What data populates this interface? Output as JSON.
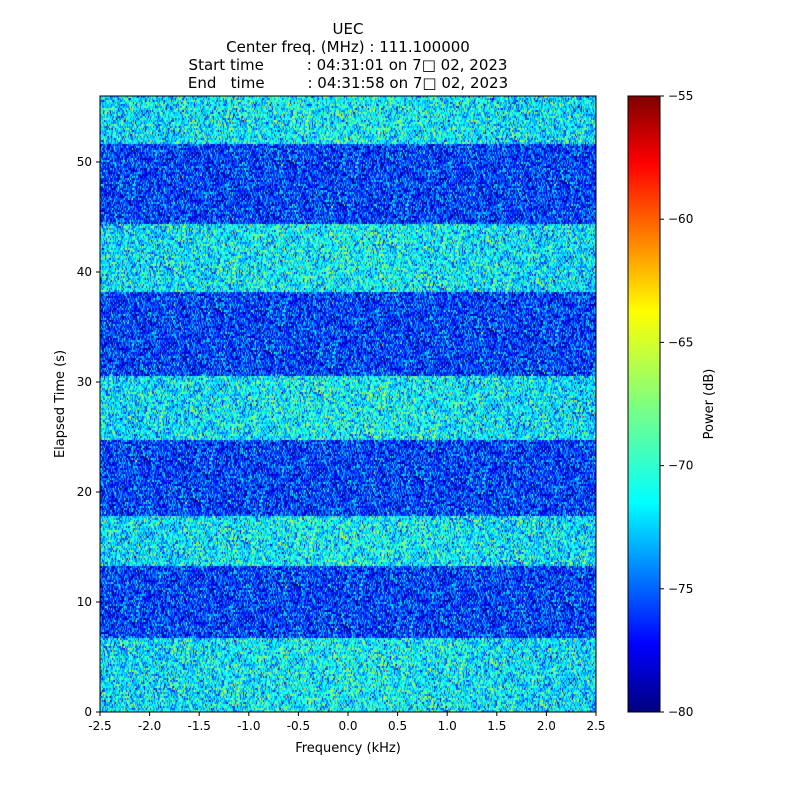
{
  "chart_data": {
    "type": "heatmap",
    "title_lines": [
      "UEC",
      "Center freq. (MHz) : 111.100000",
      "Start time         : 04:31:01 on 7□ 02, 2023",
      "End   time         : 04:31:58 on 7□ 02, 2023"
    ],
    "xlabel": "Frequency (kHz)",
    "ylabel": "Elapsed Time (s)",
    "colorbar_label": "Power (dB)",
    "colormap": "jet",
    "xlim": [
      -2.5,
      2.5
    ],
    "ylim": [
      0,
      56
    ],
    "clim": [
      -80,
      -55
    ],
    "x_ticks": [
      -2.5,
      -2.0,
      -1.5,
      -1.0,
      -0.5,
      0.0,
      0.5,
      1.0,
      1.5,
      2.0,
      2.5
    ],
    "x_tick_labels": [
      "-2.5",
      "-2.0",
      "-1.5",
      "-1.0",
      "-0.5",
      "0.0",
      "0.5",
      "1.0",
      "1.5",
      "2.0",
      "2.5"
    ],
    "y_ticks": [
      0,
      10,
      20,
      30,
      40,
      50
    ],
    "y_tick_labels": [
      "0",
      "10",
      "20",
      "30",
      "40",
      "50"
    ],
    "colorbar_ticks": [
      -80,
      -75,
      -70,
      -65,
      -60,
      -55
    ],
    "colorbar_tick_labels": [
      "−80",
      "−75",
      "−70",
      "−65",
      "−60",
      "−55"
    ],
    "time_bands": [
      {
        "t_start": 0.0,
        "t_end": 6.7,
        "level": "high",
        "mean_db": -71.5
      },
      {
        "t_start": 6.7,
        "t_end": 13.3,
        "level": "low",
        "mean_db": -75.5
      },
      {
        "t_start": 13.3,
        "t_end": 17.8,
        "level": "high",
        "mean_db": -71.5
      },
      {
        "t_start": 17.8,
        "t_end": 24.8,
        "level": "low",
        "mean_db": -75.5
      },
      {
        "t_start": 24.8,
        "t_end": 30.6,
        "level": "high",
        "mean_db": -71.5
      },
      {
        "t_start": 30.6,
        "t_end": 38.2,
        "level": "low",
        "mean_db": -75.5
      },
      {
        "t_start": 38.2,
        "t_end": 44.4,
        "level": "high",
        "mean_db": -71.5
      },
      {
        "t_start": 44.4,
        "t_end": 51.7,
        "level": "low",
        "mean_db": -75.5
      },
      {
        "t_start": 51.7,
        "t_end": 56.0,
        "level": "high",
        "mean_db": -71.5
      }
    ],
    "grid": false
  }
}
